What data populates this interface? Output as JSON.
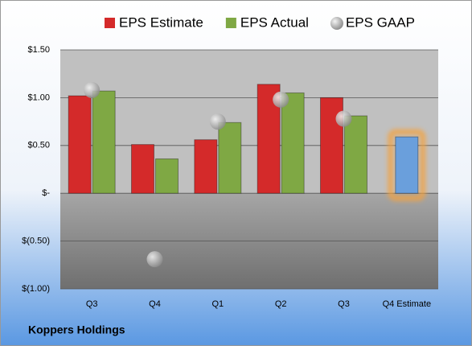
{
  "chart_data": {
    "type": "bar",
    "title": "Koppers Holdings",
    "categories": [
      "Q3",
      "Q4",
      "Q1",
      "Q2",
      "Q3",
      "Q4 Estimate"
    ],
    "series": [
      {
        "name": "EPS Estimate",
        "color": "#d42a2a",
        "values": [
          1.02,
          0.51,
          0.56,
          1.14,
          1.0,
          0.59
        ]
      },
      {
        "name": "EPS Actual",
        "color": "#7fa844",
        "values": [
          1.07,
          0.36,
          0.74,
          1.05,
          0.81,
          null
        ]
      },
      {
        "name": "EPS GAAP",
        "color": "#a8a8a8",
        "values": [
          1.08,
          -0.69,
          0.75,
          0.98,
          0.78,
          null
        ],
        "marker": "sphere"
      }
    ],
    "highlight": {
      "index": 5,
      "color": "#6a9fdc",
      "glow": "#f5a23c"
    },
    "ylim": [
      -1.0,
      1.5
    ],
    "yticks": [
      {
        "value": 1.5,
        "label": "$1.50"
      },
      {
        "value": 1.0,
        "label": "$1.00"
      },
      {
        "value": 0.5,
        "label": "$0.50"
      },
      {
        "value": 0,
        "label": "$-"
      },
      {
        "value": -0.5,
        "label": "$(0.50)"
      },
      {
        "value": -1.0,
        "label": "$(1.00)"
      }
    ],
    "grid": true
  }
}
